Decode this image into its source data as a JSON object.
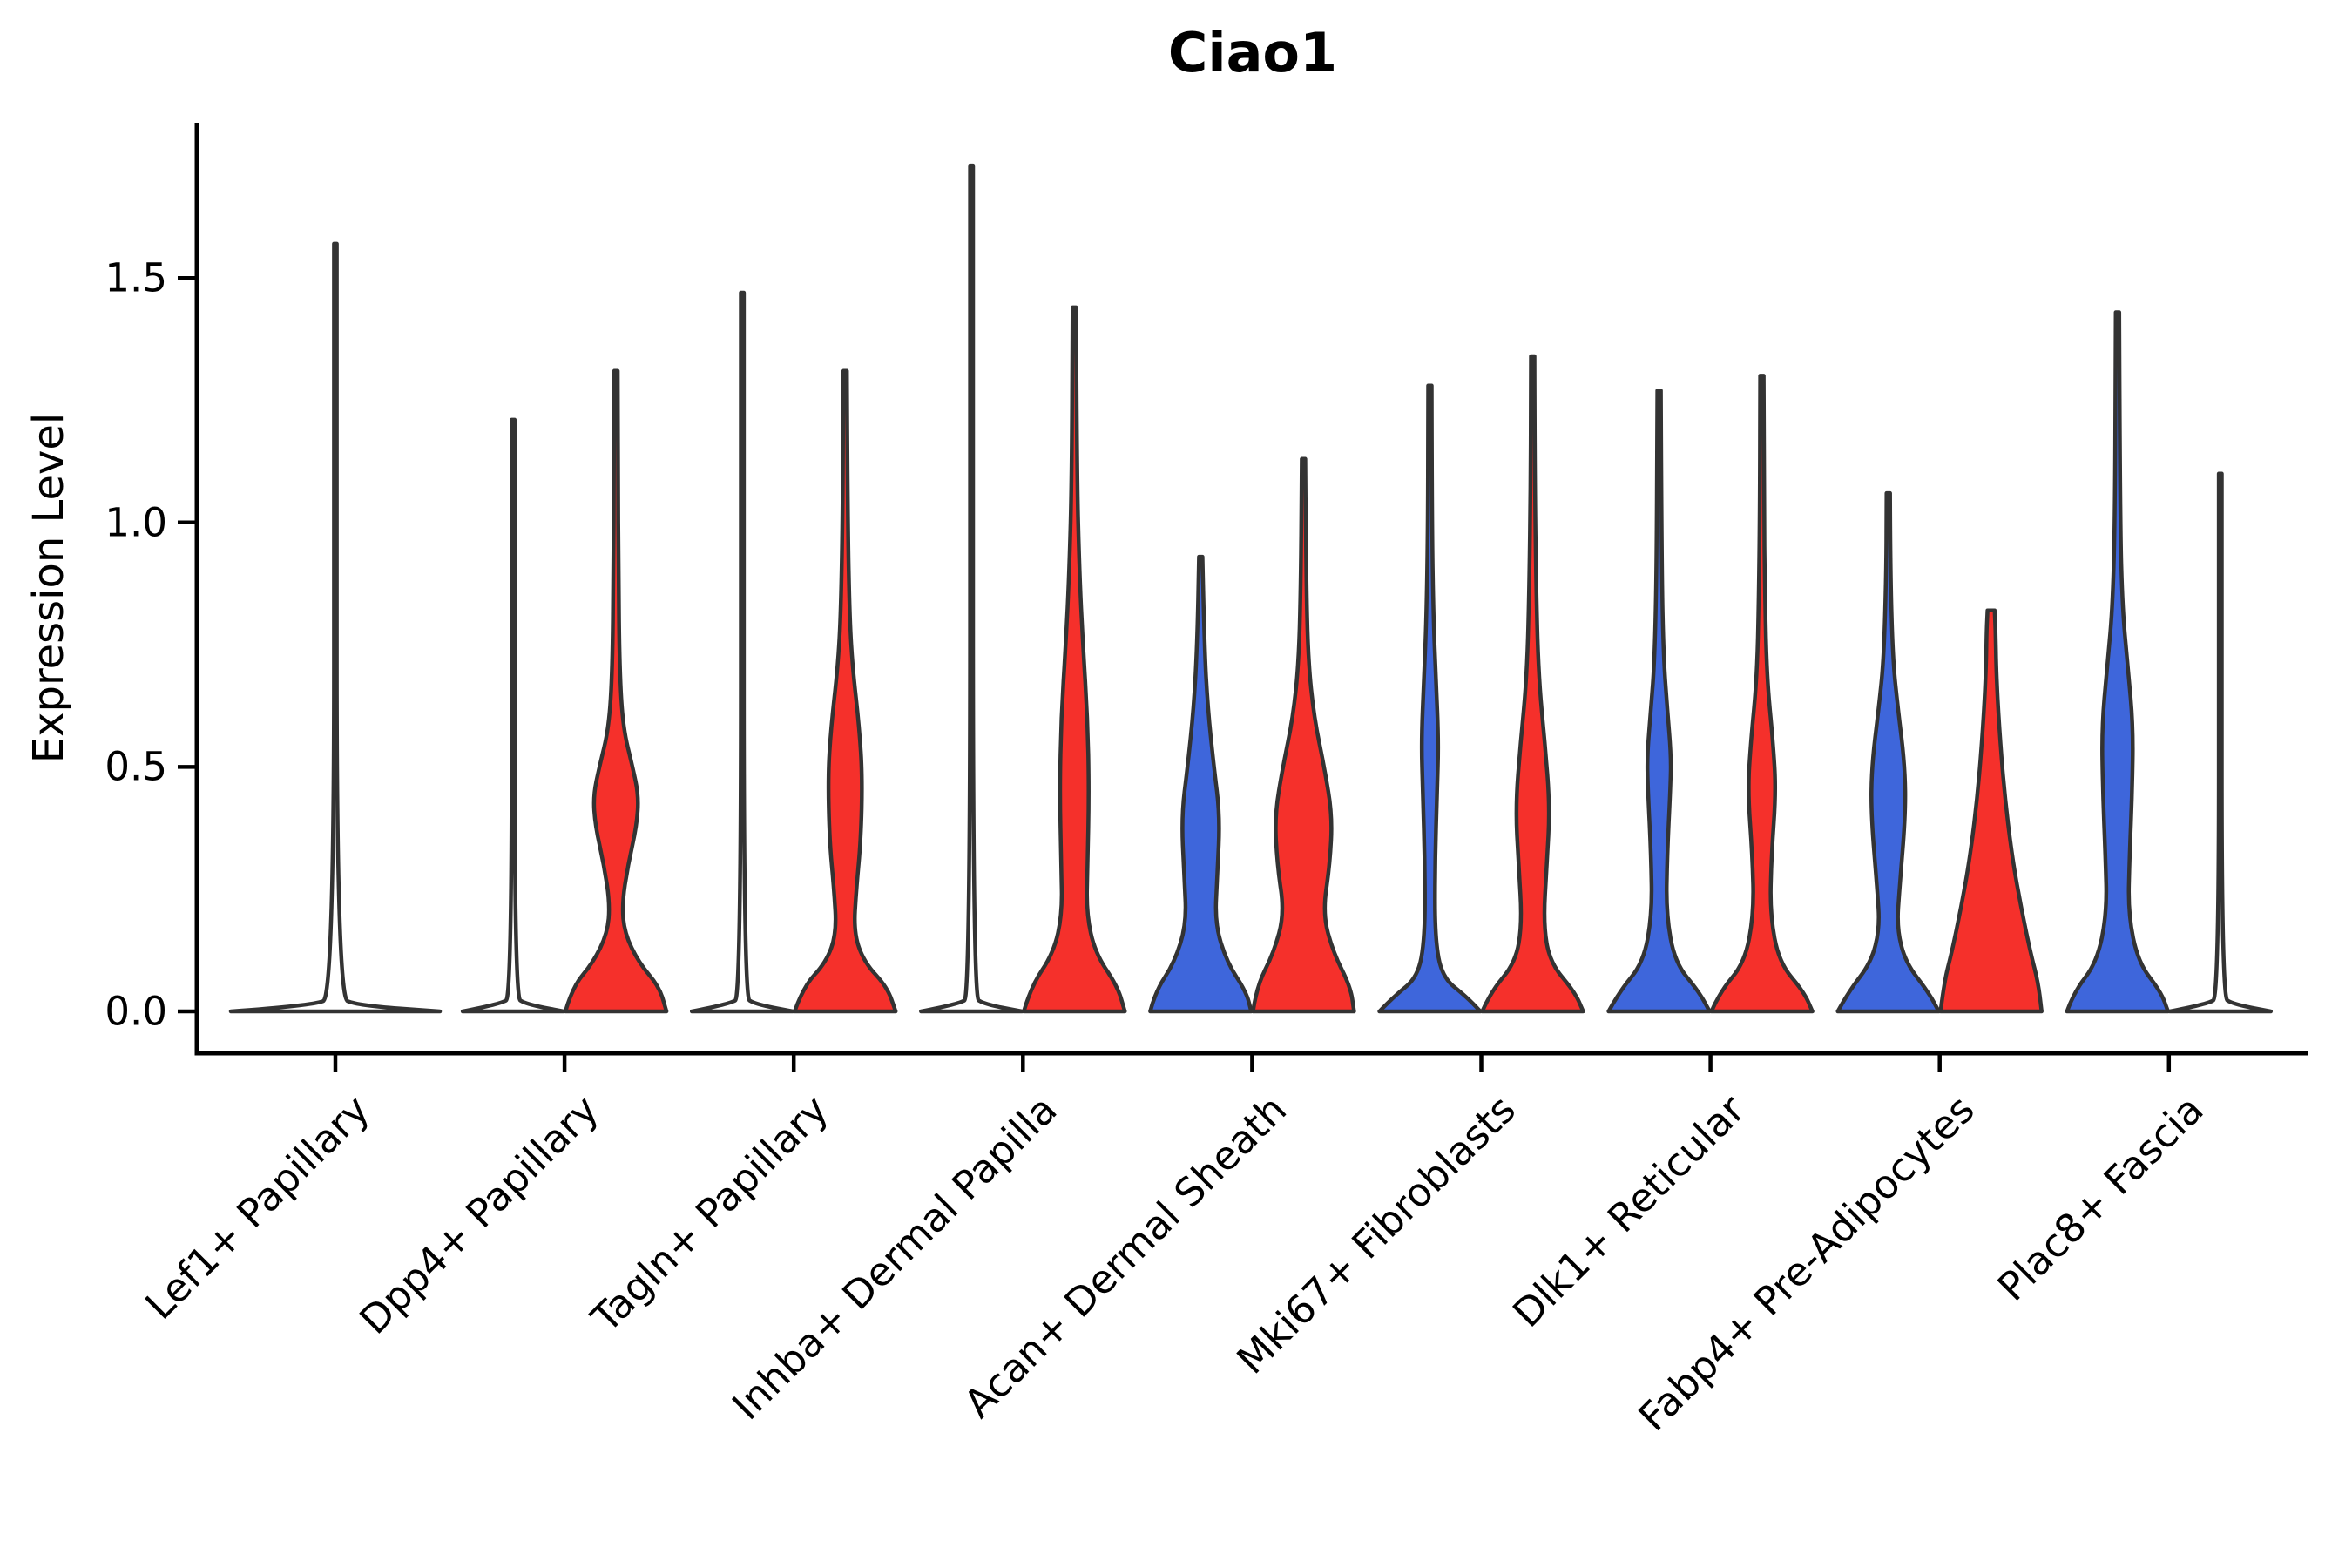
{
  "chart_data": {
    "type": "violin",
    "title": "Ciao1",
    "xlabel": "",
    "ylabel": "Expression Level",
    "ylim": [
      -0.09,
      1.82
    ],
    "ytick_values": [
      0.0,
      0.5,
      1.0,
      1.5
    ],
    "ytick_labels": [
      "0.0",
      "0.5",
      "1.0",
      "1.5"
    ],
    "grid": false,
    "legend": "none",
    "categories": [
      "Lef1+ Papillary",
      "Dpp4+ Papillary",
      "Tagln+ Papillary",
      "Inhba+ Dermal Papilla",
      "Acan+ Dermal Sheath",
      "Mki67+ Fibroblasts",
      "Dlk1+ Reticular",
      "Fabp4+ Pre-Adipocytes",
      "Plac8+ Fascia"
    ],
    "colors": {
      "left_group_fill": "#3E66DB",
      "right_group_fill": "#F5302B",
      "violin_outline": "#333333",
      "axis": "#000000",
      "text": "#000000",
      "background": "#ffffff"
    },
    "violins": [
      {
        "category_index": 0,
        "category": "Lef1+ Papillary",
        "side": "center",
        "fill": "none",
        "max_expression": 1.57,
        "profile": [
          [
            0,
            1
          ],
          [
            0.012,
            0.22
          ],
          [
            0.03,
            0.013
          ],
          [
            1.4,
            0.013
          ],
          [
            1.57,
            0.013
          ]
        ]
      },
      {
        "category_index": 1,
        "category": "Dpp4+ Papillary",
        "side": "left",
        "fill": "none",
        "max_expression": 1.21,
        "profile": [
          [
            0,
            1
          ],
          [
            0.015,
            0.25
          ],
          [
            0.03,
            0.03
          ],
          [
            1.05,
            0.03
          ],
          [
            1.21,
            0.03
          ]
        ]
      },
      {
        "category_index": 1,
        "category": "Dpp4+ Papillary",
        "side": "right",
        "fill": "#F5302B",
        "max_expression": 1.31,
        "profile": [
          [
            0,
            1
          ],
          [
            0.05,
            0.86
          ],
          [
            0.1,
            0.45
          ],
          [
            0.16,
            0.17
          ],
          [
            0.22,
            0.12
          ],
          [
            0.3,
            0.24
          ],
          [
            0.38,
            0.41
          ],
          [
            0.44,
            0.45
          ],
          [
            0.5,
            0.33
          ],
          [
            0.58,
            0.14
          ],
          [
            0.7,
            0.07
          ],
          [
            0.9,
            0.05
          ],
          [
            1.1,
            0.04
          ],
          [
            1.31,
            0.035
          ]
        ]
      },
      {
        "category_index": 2,
        "category": "Tagln+ Papillary",
        "side": "left",
        "fill": "none",
        "max_expression": 1.47,
        "profile": [
          [
            0,
            1
          ],
          [
            0.015,
            0.25
          ],
          [
            0.03,
            0.03
          ],
          [
            1.3,
            0.03
          ],
          [
            1.47,
            0.03
          ]
        ]
      },
      {
        "category_index": 2,
        "category": "Tagln+ Papillary",
        "side": "right",
        "fill": "#F5302B",
        "max_expression": 1.31,
        "profile": [
          [
            0,
            1
          ],
          [
            0.05,
            0.83
          ],
          [
            0.1,
            0.38
          ],
          [
            0.16,
            0.17
          ],
          [
            0.25,
            0.22
          ],
          [
            0.35,
            0.31
          ],
          [
            0.48,
            0.34
          ],
          [
            0.58,
            0.28
          ],
          [
            0.7,
            0.15
          ],
          [
            0.8,
            0.09
          ],
          [
            1.0,
            0.05
          ],
          [
            1.31,
            0.035
          ]
        ]
      },
      {
        "category_index": 3,
        "category": "Inhba+ Dermal Papilla",
        "side": "left",
        "fill": "none",
        "max_expression": 1.73,
        "profile": [
          [
            0,
            1
          ],
          [
            0.015,
            0.25
          ],
          [
            0.03,
            0.03
          ],
          [
            1.55,
            0.03
          ],
          [
            1.73,
            0.03
          ]
        ]
      },
      {
        "category_index": 3,
        "category": "Inhba+ Dermal Papilla",
        "side": "right",
        "fill": "#F5302B",
        "max_expression": 1.44,
        "profile": [
          [
            0,
            1
          ],
          [
            0.05,
            0.86
          ],
          [
            0.12,
            0.41
          ],
          [
            0.2,
            0.24
          ],
          [
            0.3,
            0.26
          ],
          [
            0.45,
            0.29
          ],
          [
            0.6,
            0.26
          ],
          [
            0.75,
            0.17
          ],
          [
            0.9,
            0.1
          ],
          [
            1.1,
            0.05
          ],
          [
            1.44,
            0.035
          ]
        ]
      },
      {
        "category_index": 4,
        "category": "Acan+ Dermal Sheath",
        "side": "left",
        "fill": "#3E66DB",
        "max_expression": 0.93,
        "profile": [
          [
            0,
            1
          ],
          [
            0.04,
            0.9
          ],
          [
            0.1,
            0.52
          ],
          [
            0.18,
            0.28
          ],
          [
            0.28,
            0.33
          ],
          [
            0.4,
            0.38
          ],
          [
            0.5,
            0.26
          ],
          [
            0.62,
            0.14
          ],
          [
            0.75,
            0.07
          ],
          [
            0.93,
            0.035
          ]
        ]
      },
      {
        "category_index": 4,
        "category": "Acan+ Dermal Sheath",
        "side": "right",
        "fill": "#F5302B",
        "max_expression": 1.13,
        "profile": [
          [
            0,
            1
          ],
          [
            0.05,
            0.93
          ],
          [
            0.12,
            0.59
          ],
          [
            0.2,
            0.38
          ],
          [
            0.3,
            0.52
          ],
          [
            0.4,
            0.57
          ],
          [
            0.5,
            0.41
          ],
          [
            0.6,
            0.21
          ],
          [
            0.72,
            0.09
          ],
          [
            0.9,
            0.05
          ],
          [
            1.13,
            0.035
          ]
        ]
      },
      {
        "category_index": 5,
        "category": "Mki67+ Fibroblasts",
        "side": "left",
        "fill": "#3E66DB",
        "max_expression": 1.28,
        "profile": [
          [
            0,
            1
          ],
          [
            0.03,
            0.72
          ],
          [
            0.07,
            0.24
          ],
          [
            0.15,
            0.1
          ],
          [
            0.3,
            0.1
          ],
          [
            0.45,
            0.14
          ],
          [
            0.55,
            0.17
          ],
          [
            0.68,
            0.12
          ],
          [
            0.8,
            0.07
          ],
          [
            1.0,
            0.04
          ],
          [
            1.28,
            0.035
          ]
        ]
      },
      {
        "category_index": 5,
        "category": "Mki67+ Fibroblasts",
        "side": "right",
        "fill": "#F5302B",
        "max_expression": 1.34,
        "profile": [
          [
            0,
            1
          ],
          [
            0.04,
            0.83
          ],
          [
            0.1,
            0.34
          ],
          [
            0.18,
            0.21
          ],
          [
            0.3,
            0.28
          ],
          [
            0.42,
            0.34
          ],
          [
            0.55,
            0.24
          ],
          [
            0.68,
            0.12
          ],
          [
            0.85,
            0.07
          ],
          [
            1.1,
            0.04
          ],
          [
            1.34,
            0.035
          ]
        ]
      },
      {
        "category_index": 6,
        "category": "Dlk1+ Reticular",
        "side": "left",
        "fill": "#3E66DB",
        "max_expression": 1.27,
        "profile": [
          [
            0,
            1
          ],
          [
            0.04,
            0.79
          ],
          [
            0.1,
            0.31
          ],
          [
            0.2,
            0.14
          ],
          [
            0.32,
            0.16
          ],
          [
            0.45,
            0.22
          ],
          [
            0.52,
            0.24
          ],
          [
            0.62,
            0.16
          ],
          [
            0.72,
            0.09
          ],
          [
            0.9,
            0.05
          ],
          [
            1.27,
            0.035
          ]
        ]
      },
      {
        "category_index": 6,
        "category": "Dlk1+ Reticular",
        "side": "right",
        "fill": "#F5302B",
        "max_expression": 1.3,
        "profile": [
          [
            0,
            1
          ],
          [
            0.04,
            0.83
          ],
          [
            0.1,
            0.34
          ],
          [
            0.2,
            0.16
          ],
          [
            0.32,
            0.19
          ],
          [
            0.45,
            0.28
          ],
          [
            0.55,
            0.22
          ],
          [
            0.68,
            0.1
          ],
          [
            0.85,
            0.06
          ],
          [
            1.05,
            0.04
          ],
          [
            1.3,
            0.035
          ]
        ]
      },
      {
        "category_index": 7,
        "category": "Fabp4+ Pre-Adipocytes",
        "side": "left",
        "fill": "#3E66DB",
        "max_expression": 1.06,
        "profile": [
          [
            0,
            1
          ],
          [
            0.04,
            0.79
          ],
          [
            0.1,
            0.34
          ],
          [
            0.17,
            0.17
          ],
          [
            0.25,
            0.22
          ],
          [
            0.4,
            0.34
          ],
          [
            0.5,
            0.33
          ],
          [
            0.62,
            0.19
          ],
          [
            0.72,
            0.09
          ],
          [
            0.9,
            0.04
          ],
          [
            1.06,
            0.035
          ]
        ]
      },
      {
        "category_index": 7,
        "category": "Fabp4+ Pre-Adipocytes",
        "side": "right",
        "fill": "#F5302B",
        "max_expression": 0.82,
        "profile": [
          [
            0,
            1
          ],
          [
            0.06,
            0.93
          ],
          [
            0.12,
            0.78
          ],
          [
            0.22,
            0.58
          ],
          [
            0.32,
            0.41
          ],
          [
            0.45,
            0.26
          ],
          [
            0.58,
            0.16
          ],
          [
            0.7,
            0.1
          ],
          [
            0.78,
            0.09
          ],
          [
            0.82,
            0.07
          ]
        ]
      },
      {
        "category_index": 8,
        "category": "Plac8+ Fascia",
        "side": "left",
        "fill": "#3E66DB",
        "max_expression": 1.43,
        "profile": [
          [
            0,
            1
          ],
          [
            0.04,
            0.86
          ],
          [
            0.1,
            0.41
          ],
          [
            0.2,
            0.21
          ],
          [
            0.32,
            0.24
          ],
          [
            0.45,
            0.29
          ],
          [
            0.58,
            0.31
          ],
          [
            0.7,
            0.21
          ],
          [
            0.82,
            0.1
          ],
          [
            1.0,
            0.05
          ],
          [
            1.43,
            0.035
          ]
        ]
      },
      {
        "category_index": 8,
        "category": "Plac8+ Fascia",
        "side": "right",
        "fill": "none",
        "max_expression": 1.1,
        "profile": [
          [
            0,
            1
          ],
          [
            0.015,
            0.25
          ],
          [
            0.03,
            0.03
          ],
          [
            0.95,
            0.03
          ],
          [
            1.1,
            0.03
          ]
        ]
      }
    ]
  }
}
